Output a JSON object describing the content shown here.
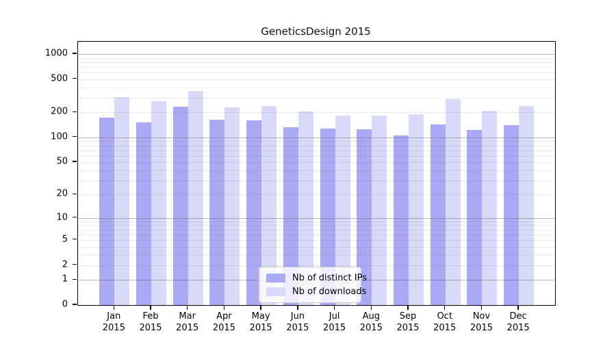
{
  "title": "GeneticsDesign 2015",
  "legend": {
    "items": [
      {
        "label": "Nb of distinct IPs",
        "color": "#a9a9f4"
      },
      {
        "label": "Nb of downloads",
        "color": "#d9d9f8"
      }
    ]
  },
  "chart_data": {
    "type": "bar",
    "title": "GeneticsDesign 2015",
    "categories": [
      "Jan",
      "Feb",
      "Mar",
      "Apr",
      "May",
      "Jun",
      "Jul",
      "Aug",
      "Sep",
      "Oct",
      "Nov",
      "Dec"
    ],
    "x_year": "2015",
    "series": [
      {
        "name": "Nb of distinct IPs",
        "color": "#a9a9f4",
        "values": [
          174,
          150,
          232,
          164,
          160,
          132,
          127,
          125,
          106,
          143,
          122,
          141
        ]
      },
      {
        "name": "Nb of downloads",
        "color": "#d9d9f8",
        "values": [
          305,
          273,
          361,
          229,
          240,
          205,
          183,
          183,
          190,
          288,
          210,
          237
        ]
      }
    ],
    "y_scale": "log10(value+1)",
    "y_ticks": [
      0,
      1,
      2,
      5,
      10,
      20,
      50,
      100,
      200,
      500,
      1000
    ],
    "ylim": [
      0,
      1400
    ],
    "grid": "on",
    "legend_position": "lower center inside plot",
    "xlabel": "",
    "ylabel": ""
  }
}
